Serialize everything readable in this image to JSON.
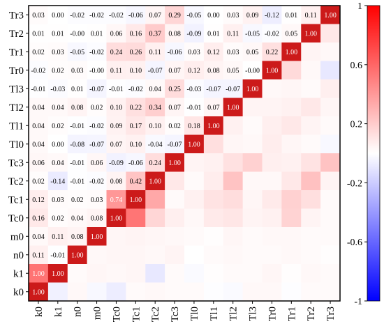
{
  "chart_data": {
    "type": "heatmap",
    "variables": [
      "k0",
      "k1",
      "n0",
      "m0",
      "Tc0",
      "Tc1",
      "Tc2",
      "Tc3",
      "Tl0",
      "Tl1",
      "Tl2",
      "Tl3",
      "Tr0",
      "Tr1",
      "Tr2",
      "Tr3"
    ],
    "row_order_top_to_bottom": [
      "Tr3",
      "Tr2",
      "Tr1",
      "Tr0",
      "Tl3",
      "Tl2",
      "Tl1",
      "Tl0",
      "Tc3",
      "Tc2",
      "Tc1",
      "Tc0",
      "m0",
      "n0",
      "k1",
      "k0"
    ],
    "lower_triangle_labels": [
      [],
      [
        "1.00"
      ],
      [
        "0.11",
        "-0.01"
      ],
      [
        "0.04",
        "0.11",
        "0.08"
      ],
      [
        "0.16",
        "0.02",
        "0.04",
        "0.08"
      ],
      [
        "0.12",
        "0.03",
        "0.02",
        "0.03",
        "0.74"
      ],
      [
        "0.02",
        "-0.14",
        "-0.01",
        "-0.02",
        "0.08",
        "0.42"
      ],
      [
        "0.06",
        "0.04",
        "-0.01",
        "0.06",
        "-0.09",
        "-0.06",
        "0.24"
      ],
      [
        "0.04",
        "0.00",
        "-0.08",
        "-0.07",
        "0.07",
        "0.10",
        "-0.04",
        "-0.07"
      ],
      [
        "0.04",
        "0.02",
        "-0.01",
        "-0.02",
        "0.09",
        "0.17",
        "0.10",
        "0.02",
        "0.18"
      ],
      [
        "0.04",
        "0.04",
        "0.08",
        "0.02",
        "0.10",
        "0.22",
        "0.34",
        "0.07",
        "-0.01",
        "0.07"
      ],
      [
        "-0.01",
        "-0.03",
        "0.01",
        "-0.07",
        "-0.01",
        "-0.02",
        "0.04",
        "0.25",
        "-0.03",
        "-0.07",
        "-0.07"
      ],
      [
        "-0.02",
        "0.02",
        "0.03",
        "-0.00",
        "0.11",
        "0.10",
        "-0.07",
        "0.07",
        "0.12",
        "0.08",
        "0.05",
        "-0.00"
      ],
      [
        "0.02",
        "0.03",
        "-0.05",
        "-0.02",
        "0.24",
        "0.26",
        "0.11",
        "-0.06",
        "0.03",
        "0.12",
        "0.03",
        "0.05",
        "0.22"
      ],
      [
        "0.01",
        "0.01",
        "-0.00",
        "0.01",
        "0.06",
        "0.16",
        "0.37",
        "0.08",
        "-0.09",
        "0.01",
        "0.11",
        "-0.05",
        "-0.02",
        "0.05"
      ],
      [
        "0.03",
        "0.00",
        "-0.02",
        "-0.02",
        "-0.02",
        "-0.06",
        "0.07",
        "0.29",
        "-0.05",
        "0.00",
        "0.03",
        "0.09",
        "-0.12",
        "0.01",
        "0.11"
      ]
    ],
    "diagonal_label": "1.00",
    "upper_triangle_values": [
      [
        0,
        -0.06,
        0.03,
        -0.03,
        -0.08,
        0.02,
        0.03,
        0.02,
        0.02,
        -0.01,
        -0.02,
        0.03,
        0.03,
        -0.01,
        0.02,
        0.02
      ],
      [
        0,
        0,
        0.02,
        0.04,
        0.03,
        0.04,
        -0.1,
        0.02,
        -0.02,
        0.01,
        0.02,
        0.02,
        0.04,
        0.01,
        0.03,
        0.02
      ],
      [
        0,
        0,
        0,
        0.03,
        0.04,
        0.04,
        0.03,
        0.05,
        0.0,
        0.02,
        0.03,
        0.02,
        0.02,
        0.03,
        0.02,
        0.01
      ],
      [
        0,
        0,
        0,
        0,
        0.04,
        0.05,
        0.04,
        0.03,
        0.02,
        0.01,
        0.04,
        0.02,
        0.03,
        0.03,
        0.02,
        0.02
      ],
      [
        0,
        0,
        0,
        0,
        0,
        0.6,
        0.18,
        0.07,
        0.03,
        0.09,
        0.11,
        0.05,
        0.06,
        0.19,
        0.05,
        0.02
      ],
      [
        0,
        0,
        0,
        0,
        0,
        0,
        0.38,
        0.02,
        0.06,
        0.12,
        0.15,
        0.04,
        0.09,
        0.2,
        0.14,
        0.02
      ],
      [
        0,
        0,
        0,
        0,
        0,
        0,
        0,
        0.1,
        0.02,
        0.08,
        0.26,
        0.03,
        0.03,
        0.1,
        0.27,
        0.05
      ],
      [
        0,
        0,
        0,
        0,
        0,
        0,
        0,
        0,
        0.05,
        0.06,
        0.13,
        0.2,
        0.07,
        0.06,
        0.12,
        0.26
      ],
      [
        0,
        0,
        0,
        0,
        0,
        0,
        0,
        0,
        0,
        0.14,
        0.04,
        0.03,
        0.08,
        0.04,
        0.02,
        -0.03
      ],
      [
        0,
        0,
        0,
        0,
        0,
        0,
        0,
        0,
        0,
        0,
        0.06,
        0.02,
        0.07,
        0.1,
        0.05,
        0.02
      ],
      [
        0,
        0,
        0,
        0,
        0,
        0,
        0,
        0,
        0,
        0,
        0,
        0.05,
        0.05,
        0.06,
        0.1,
        0.04
      ],
      [
        0,
        0,
        0,
        0,
        0,
        0,
        0,
        0,
        0,
        0,
        0,
        0,
        0.03,
        0.04,
        0.02,
        0.07
      ],
      [
        0,
        0,
        0,
        0,
        0,
        0,
        0,
        0,
        0,
        0,
        0,
        0,
        0,
        0.16,
        0.03,
        -0.1
      ],
      [
        0,
        0,
        0,
        0,
        0,
        0,
        0,
        0,
        0,
        0,
        0,
        0,
        0,
        0,
        0.05,
        0.03
      ],
      [
        0,
        0,
        0,
        0,
        0,
        0,
        0,
        0,
        0,
        0,
        0,
        0,
        0,
        0,
        0,
        0.1
      ],
      [
        0,
        0,
        0,
        0,
        0,
        0,
        0,
        0,
        0,
        0,
        0,
        0,
        0,
        0,
        0,
        0
      ]
    ],
    "colorbar": {
      "range": [
        -1,
        1
      ],
      "tick_labels": [
        "1",
        "0.6",
        "0.2",
        "-0.2",
        "-0.6",
        "-1"
      ],
      "tick_values": [
        1,
        0.6,
        0.2,
        -0.2,
        -0.6,
        -1
      ],
      "colormap": [
        "#0000ff",
        "#ffffff",
        "#ff0000"
      ]
    },
    "title": "",
    "xlabel": "",
    "ylabel": ""
  },
  "colors": {
    "diagonal": "#cc1a1a",
    "strong_positive": "#e8231c",
    "negative": "#1010ff",
    "frame": "#000000",
    "label_dark": "#000000",
    "label_light": "#ffffff"
  }
}
